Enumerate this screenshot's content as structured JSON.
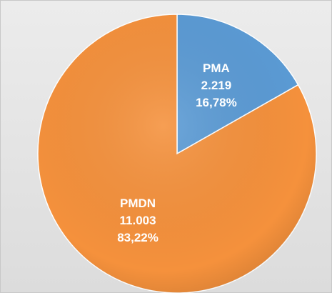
{
  "chart_data": {
    "type": "pie",
    "categories": [
      "PMA",
      "PMDN"
    ],
    "values": [
      16.78,
      83.22
    ],
    "value_labels": [
      "16,78%",
      "83,22%"
    ],
    "amounts": [
      2219,
      11003
    ],
    "amount_labels": [
      "2.219",
      "11.003"
    ],
    "colors": [
      "#5b9bd5",
      "#f5913c"
    ]
  }
}
